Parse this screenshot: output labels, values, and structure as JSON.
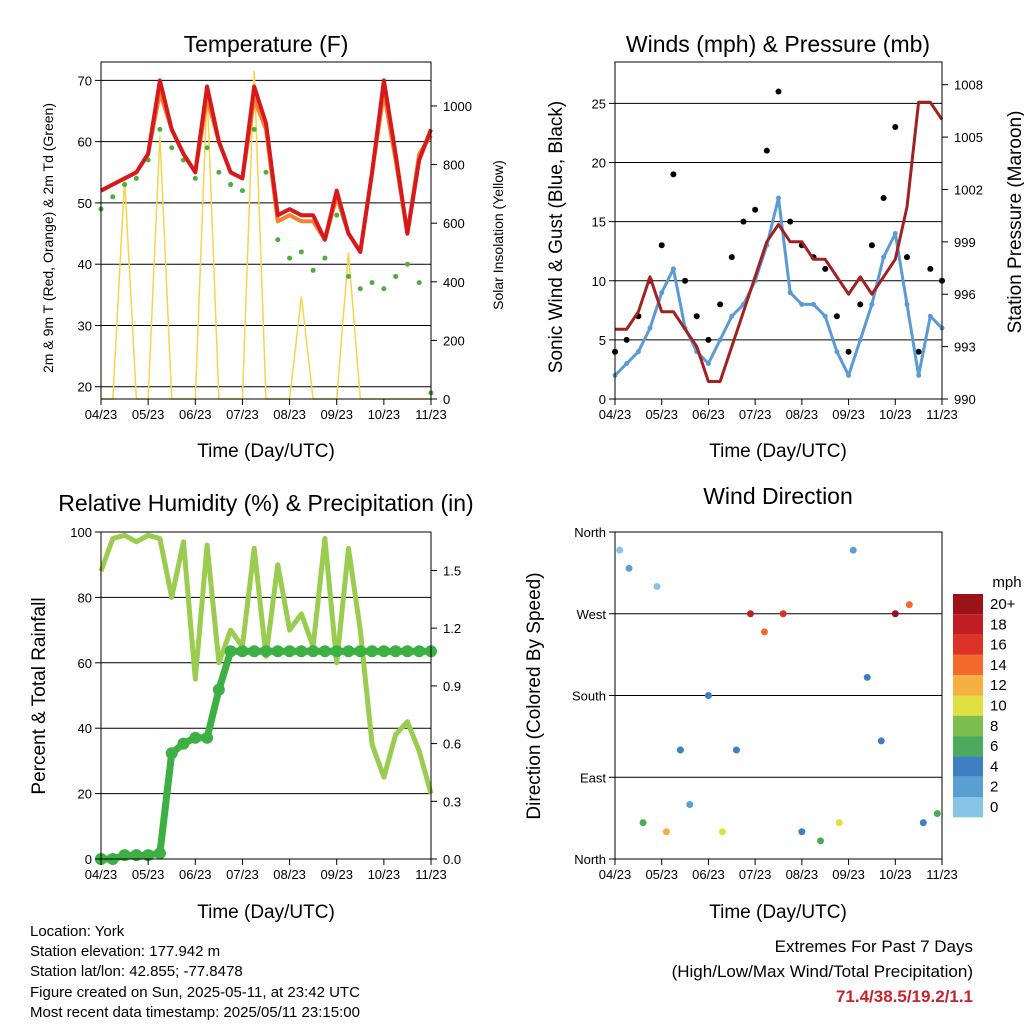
{
  "x_ticks": [
    "04/23",
    "05/23",
    "06/23",
    "07/23",
    "08/23",
    "09/23",
    "10/23",
    "11/23"
  ],
  "x_label": "Time (Day/UTC)",
  "panels": {
    "temperature": {
      "title": "Temperature (F)",
      "y_label_left": "2m & 9m T (Red, Orange) & 2m Td (Green)",
      "y_label_right": "Solar Insolation (Yellow)",
      "y_ticks_left": [
        "20",
        "30",
        "40",
        "50",
        "60",
        "70"
      ],
      "y_ticks_right": [
        "0",
        "200",
        "400",
        "600",
        "800",
        "1000"
      ]
    },
    "winds": {
      "title": "Winds (mph) & Pressure (mb)",
      "y_label_left": "Sonic Wind & Gust (Blue, Black)",
      "y_label_right": "Station Pressure (Maroon)",
      "y_ticks_left": [
        "0",
        "5",
        "10",
        "15",
        "20",
        "25"
      ],
      "y_ticks_right": [
        "990",
        "993",
        "996",
        "999",
        "1002",
        "1005",
        "1008"
      ]
    },
    "humidity": {
      "title": "Relative Humidity (%) & Precipitation (in)",
      "y_label_left": "Percent & Total Rainfall",
      "y_ticks_left": [
        "0",
        "20",
        "40",
        "60",
        "80",
        "100"
      ],
      "y_ticks_right": [
        "0.0",
        "0.3",
        "0.6",
        "0.9",
        "1.2",
        "1.5"
      ]
    },
    "direction": {
      "title": "Wind Direction",
      "y_label_left": "Direction (Colored By Speed)",
      "y_ticks_left": [
        "North",
        "East",
        "South",
        "West",
        "North"
      ],
      "legend_title": "mph",
      "legend_labels": [
        "20+",
        "18",
        "16",
        "14",
        "12",
        "10",
        "8",
        "6",
        "4",
        "2",
        "0"
      ]
    }
  },
  "colors": {
    "temp_2m": "#d7191c",
    "temp_9m": "#f58231",
    "dewpoint": "#4cae3c",
    "solar": "#f7d44c",
    "wind": "#5b9bd5",
    "gust": "#000000",
    "pressure": "#a32020",
    "humidity": "#9acd4f",
    "precip": "#3cb043",
    "speed_scale": [
      "#b3e3f5",
      "#86c5e8",
      "#5a9fd4",
      "#3d7fc0",
      "#4caa5c",
      "#7cbf4e",
      "#e0e040",
      "#f5b041",
      "#f26b2a",
      "#dc3228",
      "#c01e23",
      "#9b1318"
    ]
  },
  "chart_data": [
    {
      "type": "line",
      "title": "Temperature (F)",
      "xlabel": "Time (Day/UTC)",
      "ylabel": "2m & 9m T (Red, Orange) & 2m Td (Green)",
      "ylim": [
        18,
        73
      ],
      "y2label": "Solar Insolation (Yellow)",
      "y2lim": [
        0,
        1150
      ],
      "x": [
        0,
        0.25,
        0.5,
        0.75,
        1,
        1.25,
        1.5,
        1.75,
        2,
        2.25,
        2.5,
        2.75,
        3,
        3.25,
        3.5,
        3.75,
        4,
        4.25,
        4.5,
        4.75,
        5,
        5.25,
        5.5,
        5.75,
        6,
        6.25,
        6.5,
        6.75,
        7
      ],
      "series": [
        {
          "name": "2m T",
          "values": [
            52,
            53,
            54,
            55,
            58,
            70,
            62,
            58,
            55,
            69,
            60,
            55,
            54,
            69,
            63,
            48,
            49,
            48,
            48,
            44,
            52,
            45,
            42,
            55,
            70,
            58,
            45,
            57,
            62
          ]
        },
        {
          "name": "9m T",
          "values": [
            52,
            53,
            54,
            55,
            58,
            68,
            62,
            58,
            55,
            67,
            60,
            55,
            54,
            67,
            62,
            47,
            48,
            47,
            47,
            44,
            51,
            45,
            42,
            55,
            68,
            57,
            45,
            58,
            61
          ]
        },
        {
          "name": "2m Td",
          "values": [
            49,
            51,
            53,
            54,
            57,
            62,
            59,
            57,
            54,
            59,
            55,
            53,
            52,
            62,
            55,
            44,
            41,
            42,
            39,
            41,
            48,
            38,
            36,
            37,
            36,
            38,
            40,
            37,
            19
          ]
        },
        {
          "name": "Solar Insolation",
          "values": [
            0,
            0,
            750,
            0,
            0,
            900,
            0,
            0,
            0,
            1050,
            0,
            0,
            0,
            1120,
            0,
            0,
            0,
            350,
            0,
            0,
            0,
            500,
            0,
            0,
            0,
            0,
            0,
            0,
            0
          ]
        }
      ]
    },
    {
      "type": "scatter",
      "title": "Winds (mph) & Pressure (mb)",
      "xlabel": "Time (Day/UTC)",
      "ylabel": "Sonic Wind & Gust (Blue, Black)",
      "ylim": [
        0,
        28.5
      ],
      "y2label": "Station Pressure (Maroon)",
      "y2lim": [
        990,
        1009.3
      ],
      "x": [
        0,
        0.25,
        0.5,
        0.75,
        1,
        1.25,
        1.5,
        1.75,
        2,
        2.25,
        2.5,
        2.75,
        3,
        3.25,
        3.5,
        3.75,
        4,
        4.25,
        4.5,
        4.75,
        5,
        5.25,
        5.5,
        5.75,
        6,
        6.25,
        6.5,
        6.75,
        7
      ],
      "series": [
        {
          "name": "Wind",
          "values": [
            2,
            3,
            4,
            6,
            9,
            11,
            6,
            4,
            3,
            5,
            7,
            8,
            10,
            13,
            17,
            9,
            8,
            8,
            7,
            4,
            2,
            5,
            8,
            12,
            14,
            8,
            2,
            7,
            6
          ]
        },
        {
          "name": "Gust",
          "values": [
            4,
            5,
            7,
            10,
            13,
            19,
            10,
            7,
            5,
            8,
            12,
            15,
            16,
            21,
            26,
            15,
            13,
            12,
            11,
            7,
            4,
            8,
            13,
            17,
            23,
            12,
            4,
            11,
            10
          ]
        },
        {
          "name": "Pressure",
          "values": [
            994,
            994,
            995,
            997,
            995,
            995,
            994,
            993,
            991,
            991,
            993,
            995,
            997,
            999,
            1000,
            999,
            999,
            998,
            998,
            997,
            996,
            997,
            996,
            997,
            998,
            1001,
            1007,
            1007,
            1006
          ]
        }
      ]
    },
    {
      "type": "line",
      "title": "Relative Humidity (%) & Precipitation (in)",
      "xlabel": "Time (Day/UTC)",
      "ylabel": "Percent & Total Rainfall",
      "ylim": [
        0,
        100
      ],
      "y2lim": [
        0,
        1.7
      ],
      "x": [
        0,
        0.25,
        0.5,
        0.75,
        1,
        1.25,
        1.5,
        1.75,
        2,
        2.25,
        2.5,
        2.75,
        3,
        3.25,
        3.5,
        3.75,
        4,
        4.25,
        4.5,
        4.75,
        5,
        5.25,
        5.5,
        5.75,
        6,
        6.25,
        6.5,
        6.75,
        7
      ],
      "series": [
        {
          "name": "Relative Humidity",
          "values": [
            88,
            98,
            99,
            97,
            99,
            98,
            80,
            97,
            55,
            96,
            60,
            70,
            65,
            95,
            62,
            90,
            70,
            75,
            65,
            98,
            60,
            95,
            70,
            35,
            25,
            38,
            42,
            33,
            20
          ]
        },
        {
          "name": "Total Precipitation",
          "values": [
            0,
            0,
            0.02,
            0.02,
            0.02,
            0.03,
            0.55,
            0.6,
            0.63,
            0.63,
            0.88,
            1.08,
            1.08,
            1.08,
            1.08,
            1.08,
            1.08,
            1.08,
            1.08,
            1.08,
            1.08,
            1.08,
            1.08,
            1.08,
            1.08,
            1.08,
            1.08,
            1.08,
            1.08
          ]
        }
      ]
    },
    {
      "type": "scatter",
      "title": "Wind Direction",
      "xlabel": "Time (Day/UTC)",
      "ylabel": "Direction (Colored By Speed)",
      "ylim": [
        0,
        360
      ],
      "x": [
        0.1,
        0.3,
        0.6,
        0.9,
        1.1,
        1.4,
        1.6,
        2.0,
        2.3,
        2.6,
        2.9,
        3.2,
        3.6,
        4.0,
        4.4,
        4.8,
        5.1,
        5.4,
        5.7,
        6.0,
        6.3,
        6.6,
        6.9
      ],
      "series": [
        {
          "name": "Direction",
          "values": [
            340,
            320,
            40,
            300,
            30,
            120,
            60,
            180,
            30,
            120,
            270,
            250,
            270,
            30,
            20,
            40,
            340,
            200,
            130,
            270,
            280,
            40,
            50
          ]
        },
        {
          "name": "Speed",
          "values": [
            2,
            3,
            8,
            2,
            12,
            6,
            4,
            5,
            10,
            6,
            18,
            14,
            16,
            6,
            8,
            10,
            3,
            6,
            5,
            20,
            14,
            6,
            8
          ]
        }
      ]
    }
  ],
  "footer": {
    "location": "Location: York",
    "elevation": "Station elevation: 177.942 m",
    "latlon": "Station lat/lon: 42.855; -77.8478",
    "created": "Figure created on Sun, 2025-05-11, at 23:42 UTC",
    "timestamp": "Most recent data timestamp: 2025/05/11 23:15:00"
  },
  "extremes": {
    "line1": "Extremes For Past 7 Days",
    "line2": "(High/Low/Max Wind/Total Precipitation)",
    "values": "71.4/38.5/19.2/1.1"
  }
}
